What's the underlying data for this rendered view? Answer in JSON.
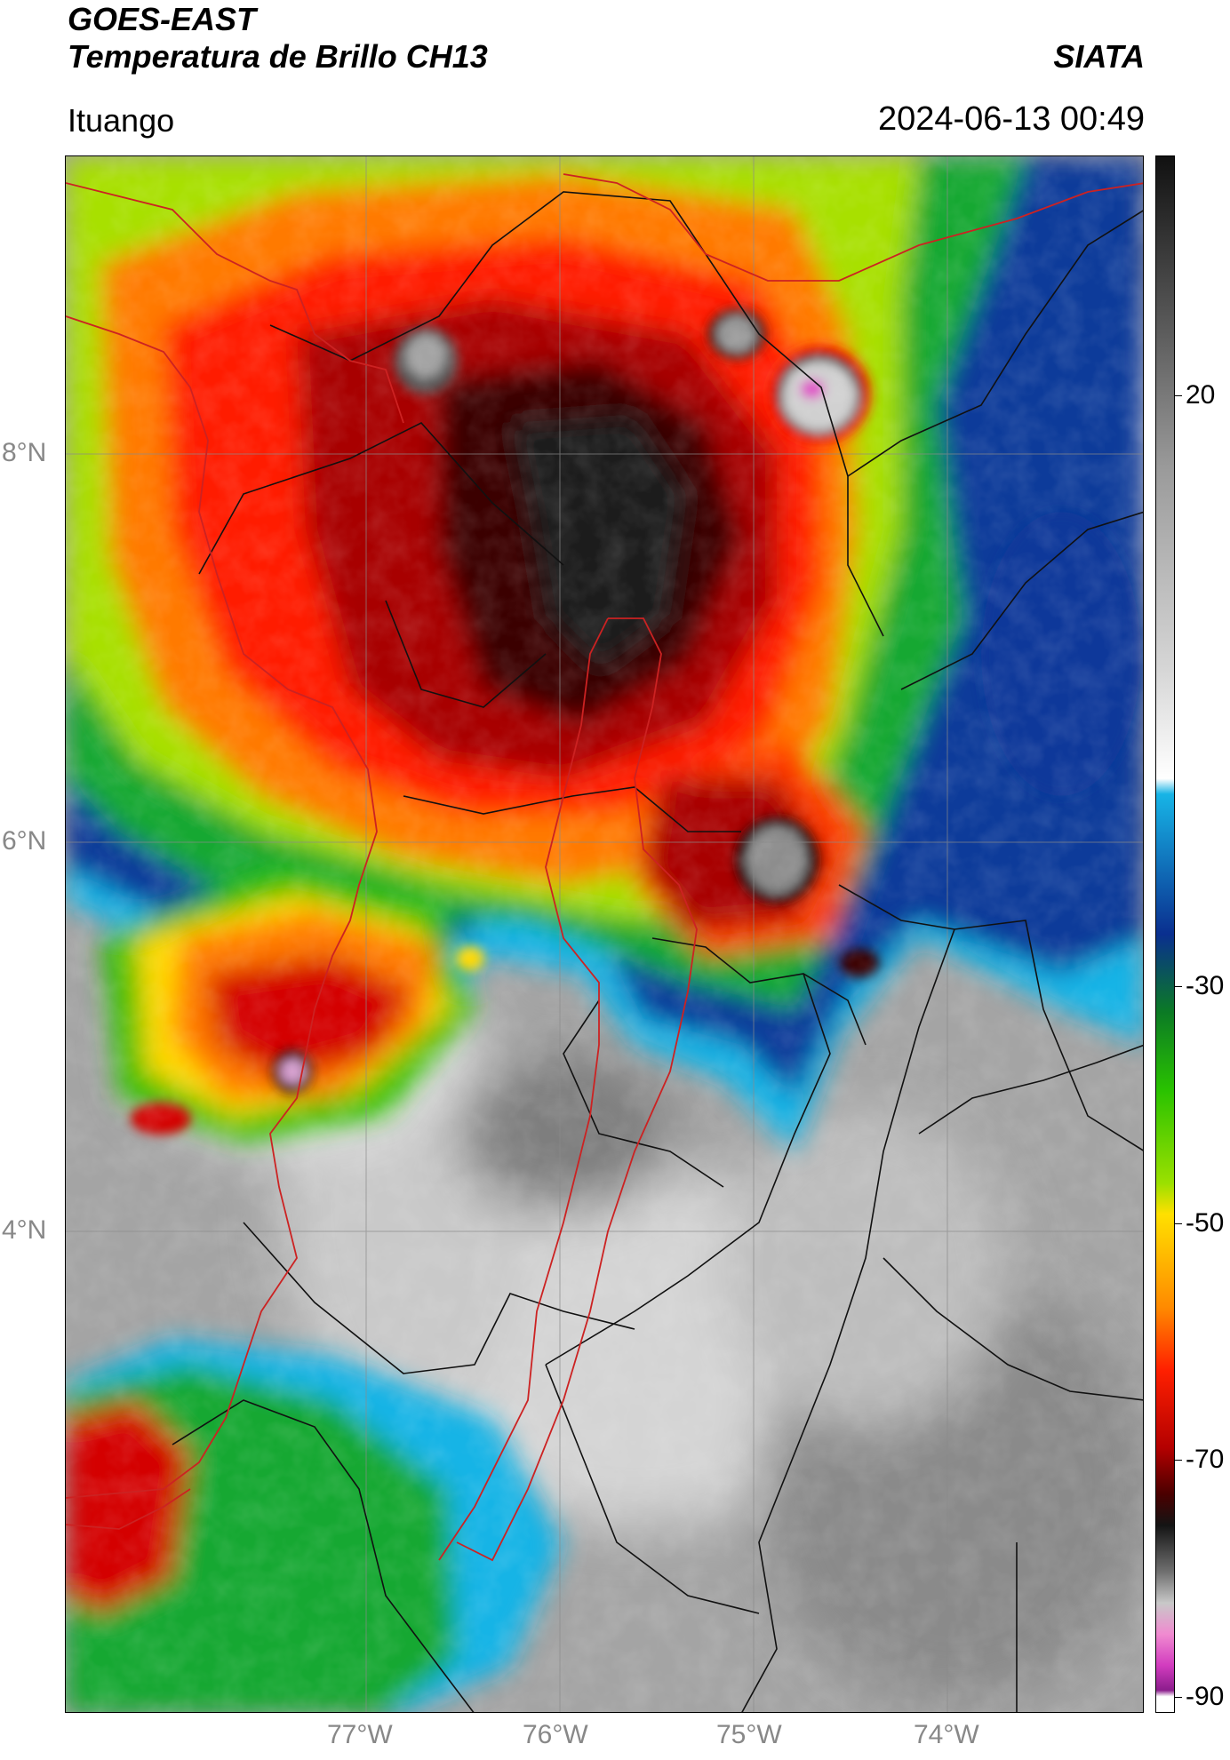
{
  "header": {
    "satellite": "GOES-EAST",
    "product": "Temperatura de Brillo CH13",
    "agency": "SIATA",
    "region": "Ituango",
    "timestamp": "2024-06-13 00:49"
  },
  "map": {
    "lon_labels": [
      "77°W",
      "76°W",
      "75°W",
      "74°W"
    ],
    "lat_labels": [
      "8°N",
      "6°N",
      "4°N"
    ]
  },
  "colorbar": {
    "units_range": [
      -90,
      35
    ],
    "labels": [
      "20",
      "-30",
      "-50",
      "-70",
      "-90"
    ],
    "colors": [
      "#111111",
      "#5a5a5a",
      "#9a9a9a",
      "#d6d6d6",
      "#ffffff",
      "#17b4e6",
      "#0a2f8f",
      "#0b7a25",
      "#29c200",
      "#9be000",
      "#ffe000",
      "#ff8a00",
      "#ff2000",
      "#b40000",
      "#4a0000",
      "#141414",
      "#707070",
      "#c8c8c8",
      "#f08ad0",
      "#d23cbf",
      "#8b1d8c",
      "#ffffff"
    ],
    "border_colors": {
      "national": "#cc2222",
      "departmental": "#111111"
    }
  }
}
